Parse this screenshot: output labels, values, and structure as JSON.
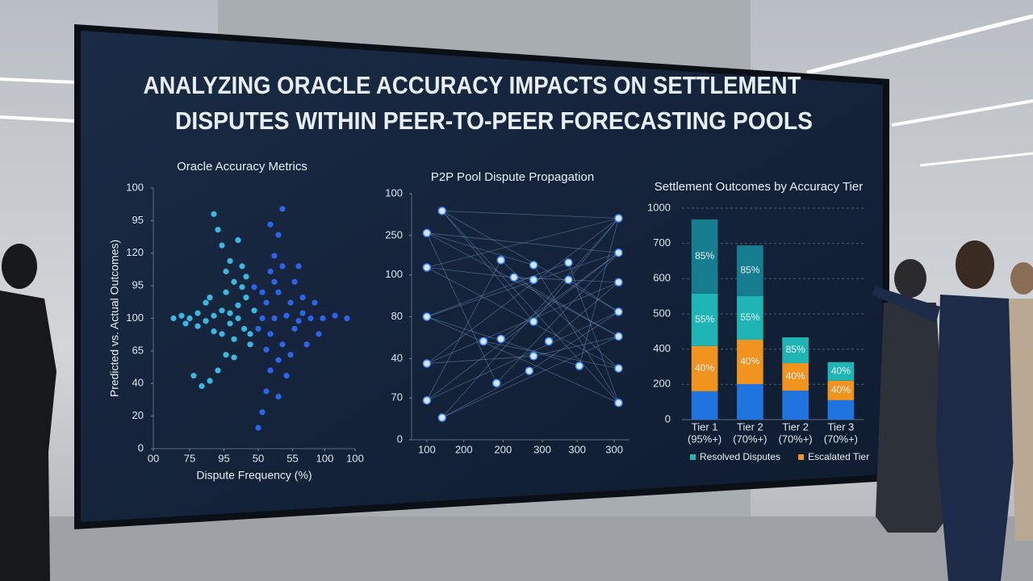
{
  "title": [
    "ANALYZING ORACLE ACCURACY IMPACTS ON SETTLEMENT",
    "DISPUTES WITHIN PEER-TO-PEER FORECASTING POOLS"
  ],
  "chart_data": [
    {
      "type": "scatter",
      "title": "Oracle Accuracy Metrics",
      "xlabel": "Dispute Frequency (%)",
      "ylabel": "Predicted vs. Actual Outcomes)",
      "xlim": [
        0,
        100
      ],
      "ylim": [
        0,
        100
      ],
      "xticks": [
        {
          "value": 0,
          "label": "00"
        },
        {
          "value": 18,
          "label": "75"
        },
        {
          "value": 35,
          "label": "95"
        },
        {
          "value": 52,
          "label": "50"
        },
        {
          "value": 69,
          "label": "55"
        },
        {
          "value": 85,
          "label": "100"
        },
        100
      ],
      "yticks": [
        0,
        {
          "value": 12.5,
          "label": "20"
        },
        {
          "value": 25,
          "label": "40"
        },
        {
          "value": 37.5,
          "label": "65"
        },
        {
          "value": 50,
          "label": "100"
        },
        {
          "value": 62.5,
          "label": "95"
        },
        {
          "value": 75,
          "label": "120"
        },
        {
          "value": 87.5,
          "label": "95"
        },
        100
      ],
      "series": [
        {
          "color": "#3fc8f2",
          "x": [
            10,
            14,
            18,
            22,
            26,
            30,
            34,
            38,
            42,
            45,
            36,
            40,
            44,
            38,
            34,
            32,
            30,
            40,
            36,
            32,
            28,
            24,
            20,
            46,
            48,
            42,
            30,
            26,
            38,
            44,
            50,
            48,
            36,
            42,
            28,
            34,
            22,
            46,
            40,
            16
          ],
          "values": [
            50,
            51,
            50,
            52,
            49,
            51,
            53,
            48,
            55,
            46,
            60,
            64,
            70,
            72,
            78,
            84,
            90,
            42,
            36,
            30,
            26,
            24,
            28,
            58,
            44,
            50,
            45,
            56,
            52,
            62,
            53,
            40,
            68,
            80,
            58,
            44,
            47,
            66,
            35,
            48
          ]
        },
        {
          "color": "#2f6bff",
          "x": [
            60,
            66,
            72,
            78,
            84,
            90,
            96,
            56,
            58,
            62,
            64,
            58,
            60,
            62,
            64,
            58,
            56,
            54,
            52,
            70,
            74,
            76,
            68,
            66,
            62,
            54,
            52,
            70,
            80,
            82,
            58,
            64,
            72,
            56,
            68,
            74,
            50,
            54,
            60,
            62
          ],
          "values": [
            50,
            51,
            49,
            50,
            50,
            51,
            50,
            56,
            44,
            60,
            40,
            68,
            74,
            82,
            92,
            30,
            22,
            14,
            8,
            64,
            58,
            40,
            36,
            28,
            20,
            60,
            46,
            46,
            56,
            44,
            86,
            70,
            70,
            38,
            56,
            52,
            62,
            50,
            64,
            34
          ]
        }
      ]
    },
    {
      "type": "network",
      "title": "P2P Pool Dispute Propagation",
      "xlim": [
        0,
        100
      ],
      "ylim": [
        0,
        100
      ],
      "xticks": [
        {
          "value": 7,
          "label": "100"
        },
        {
          "value": 24,
          "label": "200"
        },
        {
          "value": 42,
          "label": "200"
        },
        {
          "value": 60,
          "label": "300"
        },
        {
          "value": 76,
          "label": "300"
        },
        {
          "value": 93,
          "label": "300"
        }
      ],
      "yticks": [
        0,
        {
          "value": 17,
          "label": "70"
        },
        {
          "value": 33,
          "label": "40"
        },
        {
          "value": 50,
          "label": "80"
        },
        {
          "value": 67,
          "label": "100"
        },
        {
          "value": 83,
          "label": "250"
        },
        100
      ],
      "color": "#d7e6f7",
      "x": [
        14,
        7,
        7,
        7,
        7,
        7,
        14,
        41,
        56,
        47,
        56,
        72,
        72,
        56,
        41,
        33,
        56,
        63,
        77,
        54,
        39,
        95,
        95,
        95,
        95,
        95,
        95,
        95
      ],
      "values": [
        93,
        84,
        70,
        50,
        31,
        16,
        9,
        73,
        71,
        66,
        65,
        72,
        65,
        48,
        41,
        40,
        34,
        40,
        30,
        28,
        23,
        90,
        76,
        64,
        52,
        42,
        29,
        15
      ],
      "edges": [
        [
          0,
          21
        ],
        [
          0,
          24
        ],
        [
          0,
          27
        ],
        [
          0,
          13
        ],
        [
          1,
          22
        ],
        [
          1,
          25
        ],
        [
          1,
          8
        ],
        [
          2,
          21
        ],
        [
          2,
          26
        ],
        [
          2,
          10
        ],
        [
          3,
          22
        ],
        [
          3,
          27
        ],
        [
          3,
          11
        ],
        [
          4,
          21
        ],
        [
          4,
          23
        ],
        [
          4,
          16
        ],
        [
          5,
          24
        ],
        [
          5,
          22
        ],
        [
          5,
          7
        ],
        [
          6,
          21
        ],
        [
          6,
          25
        ],
        [
          6,
          19
        ],
        [
          7,
          26
        ],
        [
          8,
          27
        ],
        [
          9,
          23
        ],
        [
          9,
          25
        ],
        [
          11,
          27
        ],
        [
          12,
          24
        ],
        [
          13,
          21
        ],
        [
          14,
          22
        ],
        [
          15,
          26
        ],
        [
          16,
          25
        ],
        [
          17,
          23
        ],
        [
          18,
          21
        ],
        [
          19,
          24
        ],
        [
          20,
          22
        ],
        [
          1,
          20
        ],
        [
          3,
          18
        ]
      ]
    },
    {
      "type": "bar",
      "title": "Settlement Outcomes by Accuracy Tier",
      "categories": [
        "Tier 1",
        "Tier 2",
        "Tier 2",
        "Tier 3"
      ],
      "category_notes": [
        "(95%+)",
        "(70%+)",
        "(70%+)",
        "(70%+)"
      ],
      "ylim": [
        0,
        1000
      ],
      "yticks": [
        0,
        {
          "value": 167,
          "label": "200"
        },
        {
          "value": 333,
          "label": "400"
        },
        {
          "value": 500,
          "label": "500"
        },
        {
          "value": 667,
          "label": "600"
        },
        {
          "value": 833,
          "label": "700"
        },
        1000
      ],
      "grid": true,
      "series": [
        {
          "color": "#1f74e0",
          "values": [
            134,
            168,
            137,
            92
          ]
        },
        {
          "name": "Escalated Tier",
          "color": "#f0941e",
          "values": [
            214,
            210,
            130,
            92
          ],
          "labels": [
            "40%",
            "40%",
            "40%",
            "40%"
          ]
        },
        {
          "name": "Resolved Disputes",
          "color": "#1fb5b5",
          "values": [
            248,
            206,
            122,
            88
          ],
          "labels": [
            "55%",
            "55%",
            "85%",
            "40%"
          ]
        },
        {
          "color": "#167d8e",
          "values": [
            351,
            240,
            null,
            null
          ],
          "labels": [
            "85%",
            "85%",
            null,
            null
          ]
        }
      ]
    }
  ]
}
